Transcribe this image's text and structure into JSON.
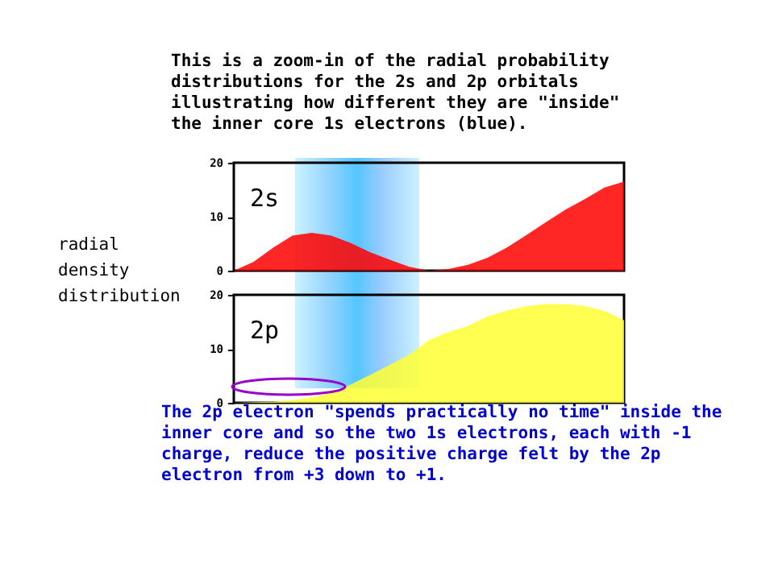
{
  "chart_data": [
    {
      "type": "area",
      "title": "This is a zoom-in of the radial probability distributions for the 2s and 2p orbitals illustrating how different they are \"inside\" the inner core 1s electrons (blue).",
      "ylabel": "radial density distribution",
      "annotations": [
        "2s"
      ],
      "categories": [
        null,
        null,
        null,
        null,
        null,
        null,
        null,
        null,
        null,
        null,
        null,
        null,
        null,
        null,
        null,
        null,
        null,
        null,
        null,
        null,
        null
      ],
      "series": [
        {
          "color": "#ff0000",
          "values": [
            0,
            1.6,
            4.2,
            6.5,
            7.0,
            6.5,
            5.1,
            3.4,
            2.0,
            0.7,
            0,
            0.3,
            1.1,
            2.4,
            4.3,
            6.6,
            9.0,
            11.3,
            13.3,
            15.4,
            16.5
          ]
        }
      ],
      "ylim": [
        0,
        20
      ],
      "yticks": [
        0,
        10,
        20
      ],
      "tick_labels": "y",
      "grid": false
    },
    {
      "type": "area",
      "annotations": [
        "2p",
        "The 2p electron \"spends practically no time\" inside the inner core and so the two 1s electrons, each with -1 charge, reduce the positive charge felt by the 2p electron from +3 down to +1."
      ],
      "categories": [
        null,
        null,
        null,
        null,
        null,
        null,
        null,
        null,
        null,
        null,
        null,
        null,
        null,
        null,
        null,
        null,
        null,
        null,
        null,
        null,
        null
      ],
      "series": [
        {
          "color": "#ffff33",
          "values": [
            0,
            0.1,
            0.2,
            0.5,
            1.0,
            1.8,
            3.4,
            5.2,
            7.0,
            8.9,
            11.6,
            13.1,
            14.2,
            16.0,
            17.1,
            17.9,
            18.3,
            18.3,
            17.9,
            17.0,
            15.3
          ]
        }
      ],
      "ylim": [
        0,
        20
      ],
      "yticks": [
        0,
        10,
        20
      ],
      "tick_labels": "y",
      "grid": false
    }
  ]
}
